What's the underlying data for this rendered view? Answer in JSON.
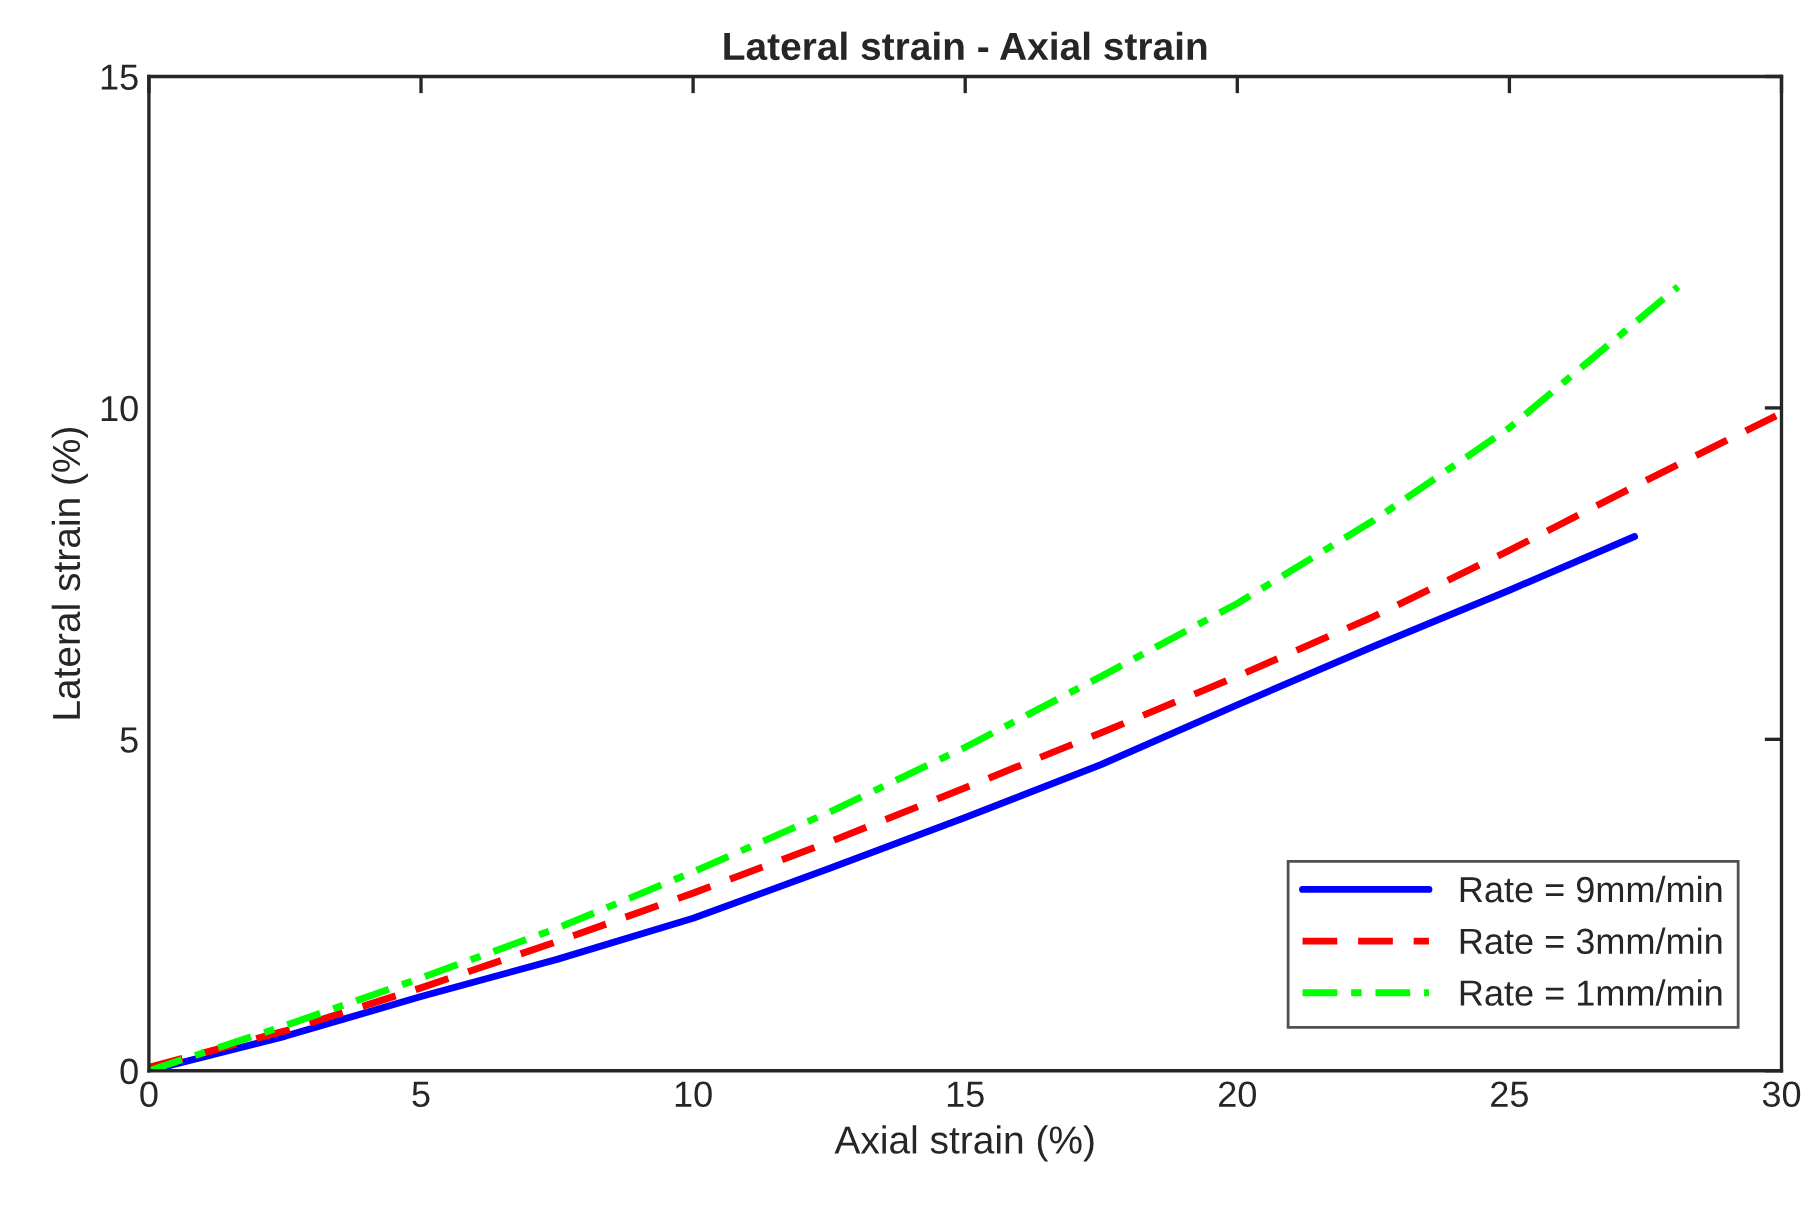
{
  "chart_data": {
    "type": "line",
    "title": "Lateral strain - Axial strain",
    "xlabel": "Axial strain (%)",
    "ylabel": "Lateral strain (%)",
    "xlim": [
      0,
      30
    ],
    "ylim": [
      0,
      15
    ],
    "xticks": [
      0,
      5,
      10,
      15,
      20,
      25,
      30
    ],
    "yticks": [
      0,
      5,
      10,
      15
    ],
    "grid": false,
    "legend": "bottom right",
    "series": [
      {
        "name": "Rate = 9mm/min",
        "color": "#0000ff",
        "line_style": "solid",
        "x": [
          0,
          2.5,
          5,
          7.5,
          10,
          12.5,
          15,
          17.5,
          20,
          22.5,
          25,
          27.3
        ],
        "values": [
          0,
          0.52,
          1.12,
          1.68,
          2.3,
          3.05,
          3.82,
          4.62,
          5.52,
          6.4,
          7.25,
          8.06
        ]
      },
      {
        "name": "Rate = 3mm/min",
        "color": "#ff0000",
        "line_style": "dashed",
        "x": [
          0,
          2.5,
          5,
          7.5,
          10,
          12.5,
          15,
          17.5,
          20,
          22.5,
          25,
          27.5,
          29.9
        ],
        "values": [
          0.05,
          0.6,
          1.25,
          1.95,
          2.68,
          3.45,
          4.27,
          5.1,
          5.95,
          6.85,
          7.85,
          8.9,
          9.88
        ]
      },
      {
        "name": "Rate = 1mm/min",
        "color": "#00ff00",
        "line_style": "dashdot",
        "x": [
          0,
          2.5,
          5,
          7.5,
          10,
          12.5,
          15,
          17.5,
          20,
          22.5,
          25,
          28.1
        ],
        "values": [
          0,
          0.68,
          1.4,
          2.15,
          3.0,
          3.9,
          4.88,
          5.95,
          7.05,
          8.3,
          9.7,
          11.83
        ]
      }
    ]
  }
}
